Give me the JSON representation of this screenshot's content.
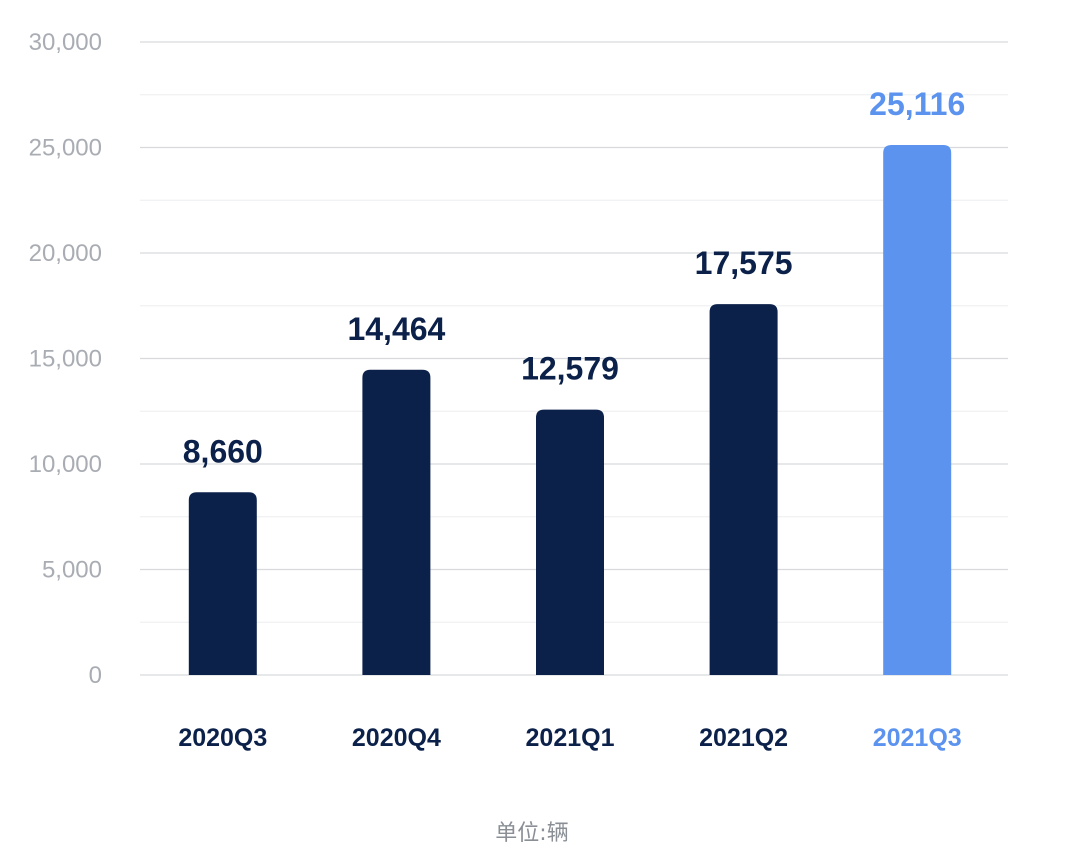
{
  "chart_data": {
    "type": "bar",
    "categories": [
      "2020Q3",
      "2020Q4",
      "2021Q1",
      "2021Q2",
      "2021Q3"
    ],
    "values": [
      8660,
      14464,
      12579,
      17575,
      25116
    ],
    "value_labels": [
      "8,660",
      "14,464",
      "12,579",
      "17,575",
      "25,116"
    ],
    "yticks": [
      "0",
      "5,000",
      "10,000",
      "15,000",
      "20,000",
      "25,000",
      "30,000"
    ],
    "ylim": [
      0,
      30000
    ],
    "unit_label": "单位:辆",
    "grid": true,
    "colors": {
      "bar": "#0c2149",
      "highlight": "#5b93ef",
      "tick_text": "#a9adb3",
      "grid_major": "#d7d9dc",
      "grid_minor": "#eceef0"
    },
    "highlight_index": 4
  }
}
